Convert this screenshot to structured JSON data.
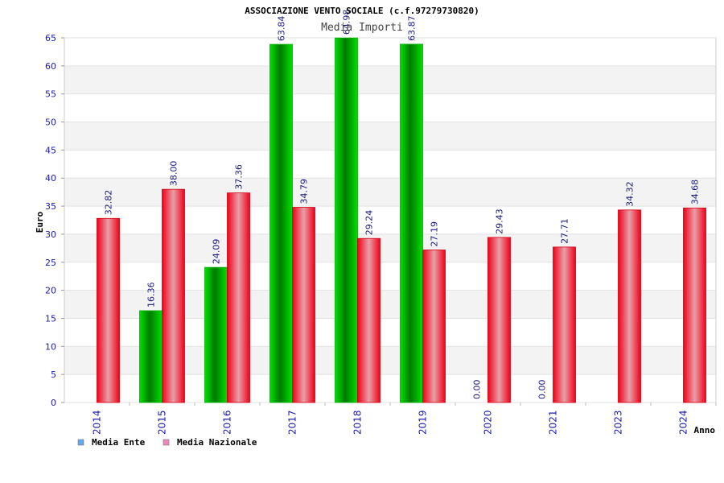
{
  "chart_data": {
    "type": "bar",
    "title": "ASSOCIAZIONE VENTO SOCIALE (c.f.97279730820)",
    "subtitle": "Media Importi",
    "xlabel": "Anno",
    "ylabel": "Euro",
    "ylim": [
      0,
      65
    ],
    "yticks": [
      "0",
      "5",
      "10",
      "15",
      "20",
      "25",
      "30",
      "35",
      "40",
      "45",
      "50",
      "55",
      "60",
      "65"
    ],
    "categories": [
      "2014",
      "2015",
      "2016",
      "2017",
      "2018",
      "2019",
      "2020",
      "2021",
      "2023",
      "2024"
    ],
    "series": [
      {
        "name": "Media Ente",
        "values": [
          null,
          16.36,
          24.09,
          63.84,
          64.98,
          63.87,
          0.0,
          0.0,
          null,
          null
        ],
        "labels": [
          "",
          "16.36",
          "24.09",
          "63.84",
          "64.98",
          "63.87",
          "0.00",
          "0.00",
          "",
          ""
        ],
        "color": "#00c000",
        "legend_color": "#66aaee"
      },
      {
        "name": "Media Nazionale",
        "values": [
          32.82,
          38.0,
          37.36,
          34.79,
          29.24,
          27.19,
          29.43,
          27.71,
          34.32,
          34.68
        ],
        "labels": [
          "32.82",
          "38.00",
          "37.36",
          "34.79",
          "29.24",
          "27.19",
          "29.43",
          "27.71",
          "34.32",
          "34.68"
        ],
        "color": "#e8001c",
        "legend_color": "#ee88bb"
      }
    ],
    "grid": true,
    "legend_position": "bottom-left"
  }
}
